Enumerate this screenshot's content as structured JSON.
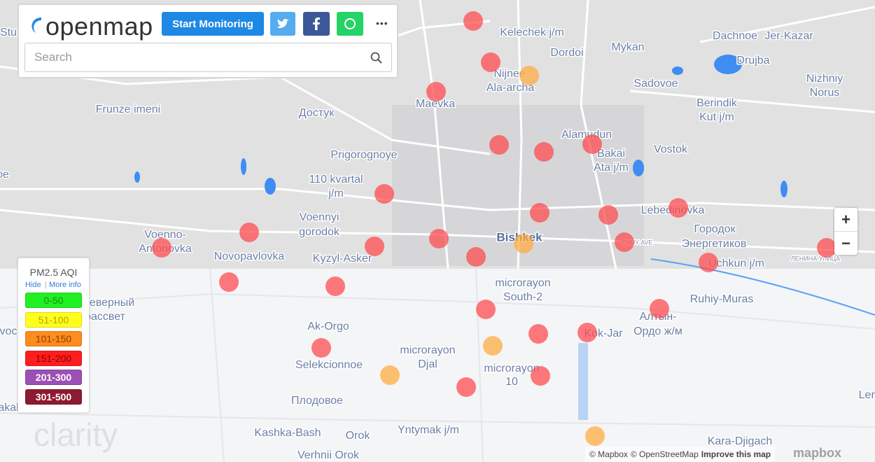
{
  "header": {
    "logo": "openmap",
    "start_button": "Start Monitoring",
    "more": "•••",
    "search_placeholder": "Search"
  },
  "legend": {
    "title": "PM2.5 AQI",
    "hide": "Hide",
    "separator": "|",
    "more_info": "More info",
    "ranges": [
      {
        "label": "0-50",
        "color": "#22f022",
        "text_color": "#1a8a1a"
      },
      {
        "label": "51-100",
        "color": "#ffff1e",
        "text_color": "#c59a00"
      },
      {
        "label": "101-150",
        "color": "#ff8c1e",
        "text_color": "#8a3c00"
      },
      {
        "label": "151-200",
        "color": "#ff1e1e",
        "text_color": "#8a0000"
      },
      {
        "label": "201-300",
        "color": "#9c50b5",
        "text_color": "#ffffff"
      },
      {
        "label": "301-500",
        "color": "#8c1a30",
        "text_color": "#ffffff"
      }
    ]
  },
  "place_labels": [
    "Stu",
    "Kelechek j/m",
    "Dachnoe",
    "Jer-Kazar",
    "Dordoi",
    "Mykan",
    "Drujba",
    "Nijnee",
    "Ala-archa",
    "Nizhniy",
    "Norus",
    "Sadovoe",
    "Maevka",
    "Frunze imeni",
    "Достук",
    "Berindik",
    "Kut j/m",
    "Alamudun",
    "Bakai",
    "Ata j/m",
    "Vostok",
    "Prigorognoye",
    "oe",
    "110 kvartal",
    "j/m",
    "Voennyi",
    "gorodok",
    "Lebedinovka",
    "Городок",
    "Энергетиков",
    "Voenno-",
    "Antonovka",
    "Bishkek",
    "Novopavlovka",
    "Kyzyl-Asker",
    "Uchkun j/m",
    "microrayon",
    "South-2",
    "Ruhiy-Muras",
    "еверный",
    "рассвет",
    "Алтын-",
    "Ордо ж/м",
    "Kok-Jar",
    "Ak-Orgo",
    "voc",
    "microrayon",
    "Djal",
    "Selekcionnoe",
    "microrayon",
    "10",
    "Плодовое",
    "akal",
    "Len",
    "Kashka-Bash",
    "Orok",
    "Yntymak j/m",
    "Kara-Djigach",
    "Verhnii Orok"
  ],
  "road_labels": [
    "CHUY AVE",
    "ЛЕНИНА УЛИЦА"
  ],
  "zoom": {
    "in": "+",
    "out": "−"
  },
  "attribution": {
    "mapbox": "© Mapbox",
    "osm": "© OpenStreetMap",
    "improve": "Improve this map"
  },
  "mapbox_logo": "mapbox",
  "watermark": "clarity"
}
